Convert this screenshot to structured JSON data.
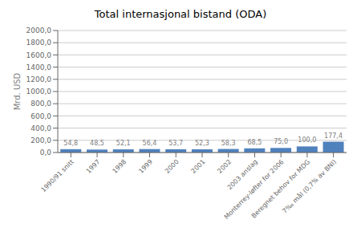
{
  "chart_data": {
    "type": "bar",
    "title": "Total internasjonal bistand (ODA)",
    "ylabel": "Mrd. USD",
    "categories": [
      "1990/91 snitt",
      "1997",
      "1998",
      "1999",
      "2000",
      "2001",
      "2002",
      "2003 anslag",
      "Monterrey-løfter for 2006",
      "Beregnet behov for MDG",
      "7‰ mål (0,7% av BNI)"
    ],
    "values": [
      54.8,
      48.5,
      52.1,
      56.4,
      53.7,
      52.3,
      58.3,
      68.5,
      75.0,
      100.0,
      177.4
    ],
    "value_labels": [
      "54,8",
      "48,5",
      "52,1",
      "56,4",
      "53,7",
      "52,3",
      "58,3",
      "68,5",
      "75,0",
      "100,0",
      "177,4"
    ],
    "color": "#4f81bd",
    "ylim": [
      0,
      2000
    ],
    "yticks": [
      {
        "value": 0,
        "label": "0,0"
      },
      {
        "value": 200,
        "label": "200,0"
      },
      {
        "value": 400,
        "label": "400,0"
      },
      {
        "value": 600,
        "label": "600,0"
      },
      {
        "value": 800,
        "label": "800,0"
      },
      {
        "value": 1000,
        "label": "1000,0"
      },
      {
        "value": 1200,
        "label": "1200,0"
      },
      {
        "value": 1400,
        "label": "1400,0"
      },
      {
        "value": 1600,
        "label": "1600,0"
      },
      {
        "value": 1800,
        "label": "1800,0"
      },
      {
        "value": 2000,
        "label": "2000,0"
      }
    ],
    "grid": true,
    "data_labels": true
  }
}
